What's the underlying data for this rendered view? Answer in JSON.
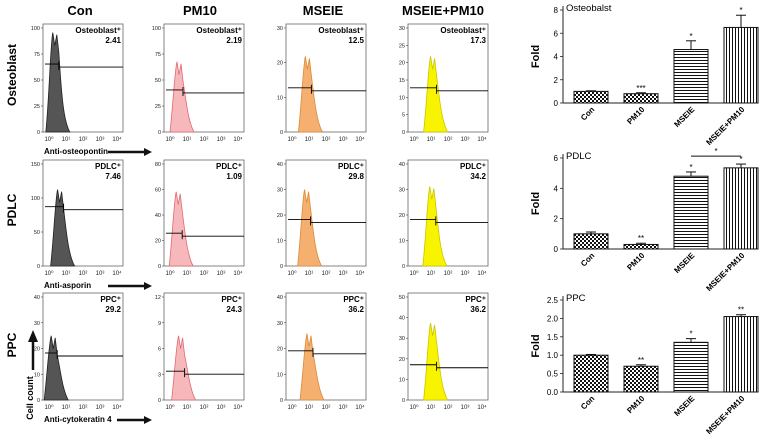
{
  "columns": [
    "Con",
    "PM10",
    "MSEIE",
    "MSEIE+PM10"
  ],
  "row_labels": [
    "Osteoblast",
    "PDLC",
    "PPC"
  ],
  "x_tick_labels": [
    "10⁰",
    "10¹",
    "10²",
    "10³",
    "10⁴"
  ],
  "y_axis_label": "Cell count",
  "colors": {
    "con": "#555555",
    "pm10": "#f6b8bb",
    "mseie": "#f5b070",
    "mseie_pm10": "#f8f400"
  },
  "histograms": [
    {
      "marker_label": "Anti-osteopontin",
      "panels": [
        {
          "label": "Osteoblast⁺",
          "value": "2.41",
          "yticks": [
            "0",
            "25",
            "50",
            "75",
            "100"
          ]
        },
        {
          "label": "Osteoblast⁺",
          "value": "2.19",
          "yticks": [
            "0",
            "25",
            "50",
            "75",
            "100"
          ]
        },
        {
          "label": "Osteoblast⁺",
          "value": "12.5",
          "yticks": [
            "0",
            "10",
            "20",
            "30"
          ]
        },
        {
          "label": "Osteoblast⁺",
          "value": "17.3",
          "yticks": [
            "0",
            "5",
            "10",
            "15",
            "20",
            "25",
            "30"
          ]
        }
      ]
    },
    {
      "marker_label": "Anti-asporin",
      "panels": [
        {
          "label": "PDLC⁺",
          "value": "7.46",
          "yticks": [
            "0",
            "50",
            "100",
            "150"
          ]
        },
        {
          "label": "PDLC⁺",
          "value": "1.09",
          "yticks": [
            "0",
            "20",
            "40",
            "60",
            "80"
          ]
        },
        {
          "label": "PDLC⁺",
          "value": "29.8",
          "yticks": [
            "0",
            "10",
            "20",
            "30",
            "40"
          ]
        },
        {
          "label": "PDLC⁺",
          "value": "34.2",
          "yticks": [
            "0",
            "10",
            "20",
            "30",
            "40"
          ]
        }
      ]
    },
    {
      "marker_label": "Anti-cytokeratin 4",
      "panels": [
        {
          "label": "PPC⁺",
          "value": "29.2",
          "yticks": [
            "0",
            "10",
            "20",
            "30",
            "40"
          ]
        },
        {
          "label": "PPC⁺",
          "value": "24.3",
          "yticks": [
            "0",
            "3",
            "6",
            "9",
            "12"
          ]
        },
        {
          "label": "PPC⁺",
          "value": "36.2",
          "yticks": [
            "0",
            "10",
            "20",
            "30",
            "40"
          ]
        },
        {
          "label": "PPC⁺",
          "value": "36.2",
          "yticks": [
            "0",
            "10",
            "20",
            "30",
            "40",
            "50"
          ]
        }
      ]
    }
  ],
  "chart_data": [
    {
      "type": "bar",
      "title": "Osteobalst",
      "ylabel": "Fold",
      "categories": [
        "Con",
        "PM10",
        "MSEIE",
        "MSEIE+PM10"
      ],
      "values": [
        1.0,
        0.8,
        4.6,
        6.5
      ],
      "errors": [
        0.05,
        0.08,
        0.75,
        1.05
      ],
      "significance": [
        "",
        "***",
        "*",
        "*"
      ],
      "ylim": [
        0,
        8
      ],
      "yticks": [
        "0",
        "2",
        "4",
        "6",
        "8"
      ]
    },
    {
      "type": "bar",
      "title": "PDLC",
      "ylabel": "Fold",
      "categories": [
        "Con",
        "PM10",
        "MSEIE",
        "MSEIE+PM10"
      ],
      "values": [
        1.0,
        0.3,
        4.8,
        5.35
      ],
      "errors": [
        0.12,
        0.08,
        0.28,
        0.25
      ],
      "significance": [
        "",
        "**",
        "*",
        "*"
      ],
      "bracket_label": "*",
      "ylim": [
        0,
        6
      ],
      "yticks": [
        "0",
        "2",
        "4",
        "6"
      ]
    },
    {
      "type": "bar",
      "title": "PPC",
      "ylabel": "Fold",
      "categories": [
        "Con",
        "PM10",
        "MSEIE",
        "MSEIE+PM10"
      ],
      "values": [
        1.0,
        0.7,
        1.35,
        2.05
      ],
      "errors": [
        0.02,
        0.04,
        0.1,
        0.05
      ],
      "significance": [
        "",
        "**",
        "*",
        "**"
      ],
      "ylim": [
        0,
        2.5
      ],
      "yticks": [
        "0.0",
        "0.5",
        "1.0",
        "1.5",
        "2.0",
        "2.5"
      ]
    }
  ]
}
